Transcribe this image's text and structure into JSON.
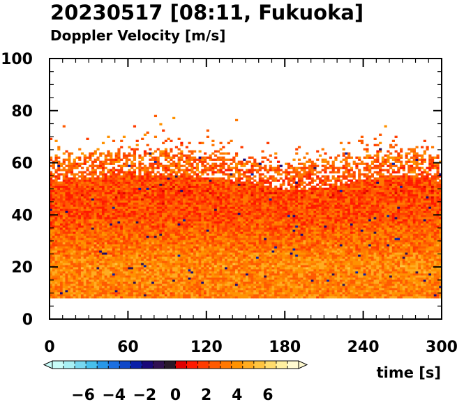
{
  "chart_data": {
    "type": "heatmap",
    "title": "20230517 [08:11, Fukuoka]",
    "subtitle": "Doppler Velocity [m/s]",
    "xlabel": "time [s]",
    "ylabel": "",
    "xlim": [
      0,
      300
    ],
    "ylim": [
      0,
      100
    ],
    "x_ticks": [
      0,
      60,
      120,
      180,
      240,
      300
    ],
    "y_ticks": [
      0,
      20,
      40,
      60,
      80,
      100
    ],
    "grid": false,
    "data_range_height": [
      8,
      62
    ],
    "echo_top_profile": {
      "time": [
        0,
        30,
        60,
        90,
        120,
        150,
        180,
        210,
        240,
        270,
        300
      ],
      "top_height": [
        60,
        62,
        63,
        63,
        62,
        60,
        57,
        58,
        61,
        63,
        60
      ]
    },
    "dominant_velocity_by_height": {
      "height": [
        10,
        20,
        30,
        40,
        50,
        60
      ],
      "velocity": [
        3.5,
        3.8,
        3.0,
        2.2,
        2.0,
        2.8
      ]
    },
    "colorbar": {
      "label": "Doppler Velocity [m/s]",
      "min": -8,
      "max": 8,
      "ticks": [
        -6,
        -4,
        -2,
        0,
        2,
        4,
        6
      ],
      "tick_labels": [
        "−6",
        "−4",
        "−2",
        "0",
        "2",
        "4",
        "6"
      ],
      "colors": [
        "#c8fcf8",
        "#a8f0f4",
        "#78d8f0",
        "#48c0ec",
        "#2898e8",
        "#1c70e0",
        "#1048c8",
        "#0a20a8",
        "#180878",
        "#301050",
        "#281828",
        "#e00000",
        "#ff1a00",
        "#ff3c00",
        "#ff5a00",
        "#ff7800",
        "#ff9200",
        "#ffac20",
        "#ffc440",
        "#ffdc6c",
        "#fff0a0",
        "#fffad0"
      ]
    }
  }
}
